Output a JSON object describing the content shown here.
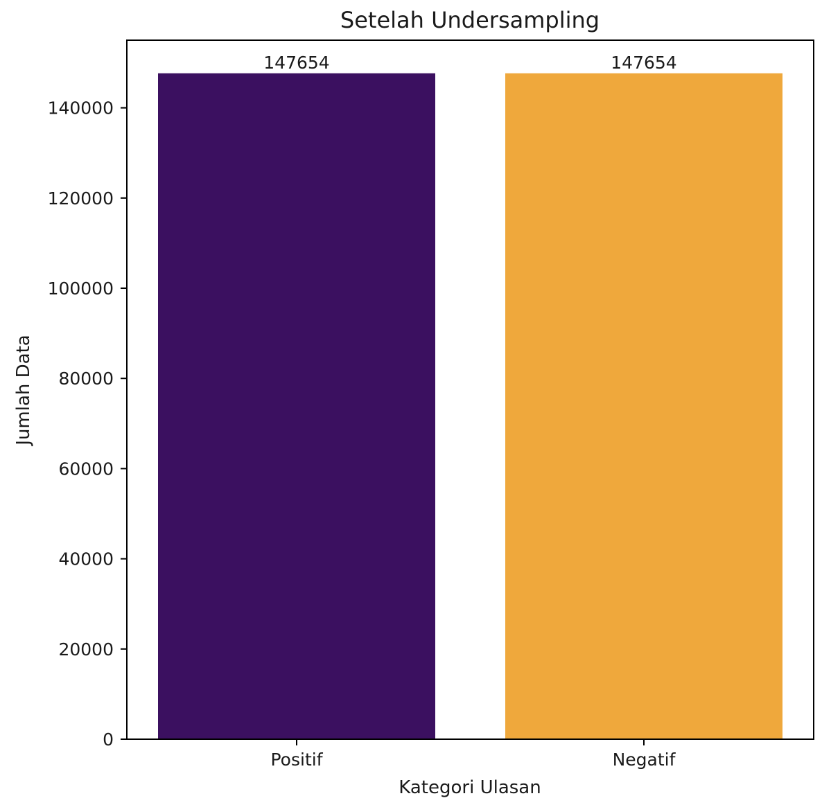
{
  "chart_data": {
    "type": "bar",
    "title": "Setelah Undersampling",
    "xlabel": "Kategori Ulasan",
    "ylabel": "Jumlah Data",
    "categories": [
      "Positif",
      "Negatif"
    ],
    "values": [
      147654,
      147654
    ],
    "data_labels": [
      "147654",
      "147654"
    ],
    "colors": [
      "#3b1060",
      "#efa83c"
    ],
    "ylim": [
      0,
      155000
    ],
    "yticks": [
      0,
      20000,
      40000,
      60000,
      80000,
      100000,
      120000,
      140000
    ],
    "grid": false
  }
}
